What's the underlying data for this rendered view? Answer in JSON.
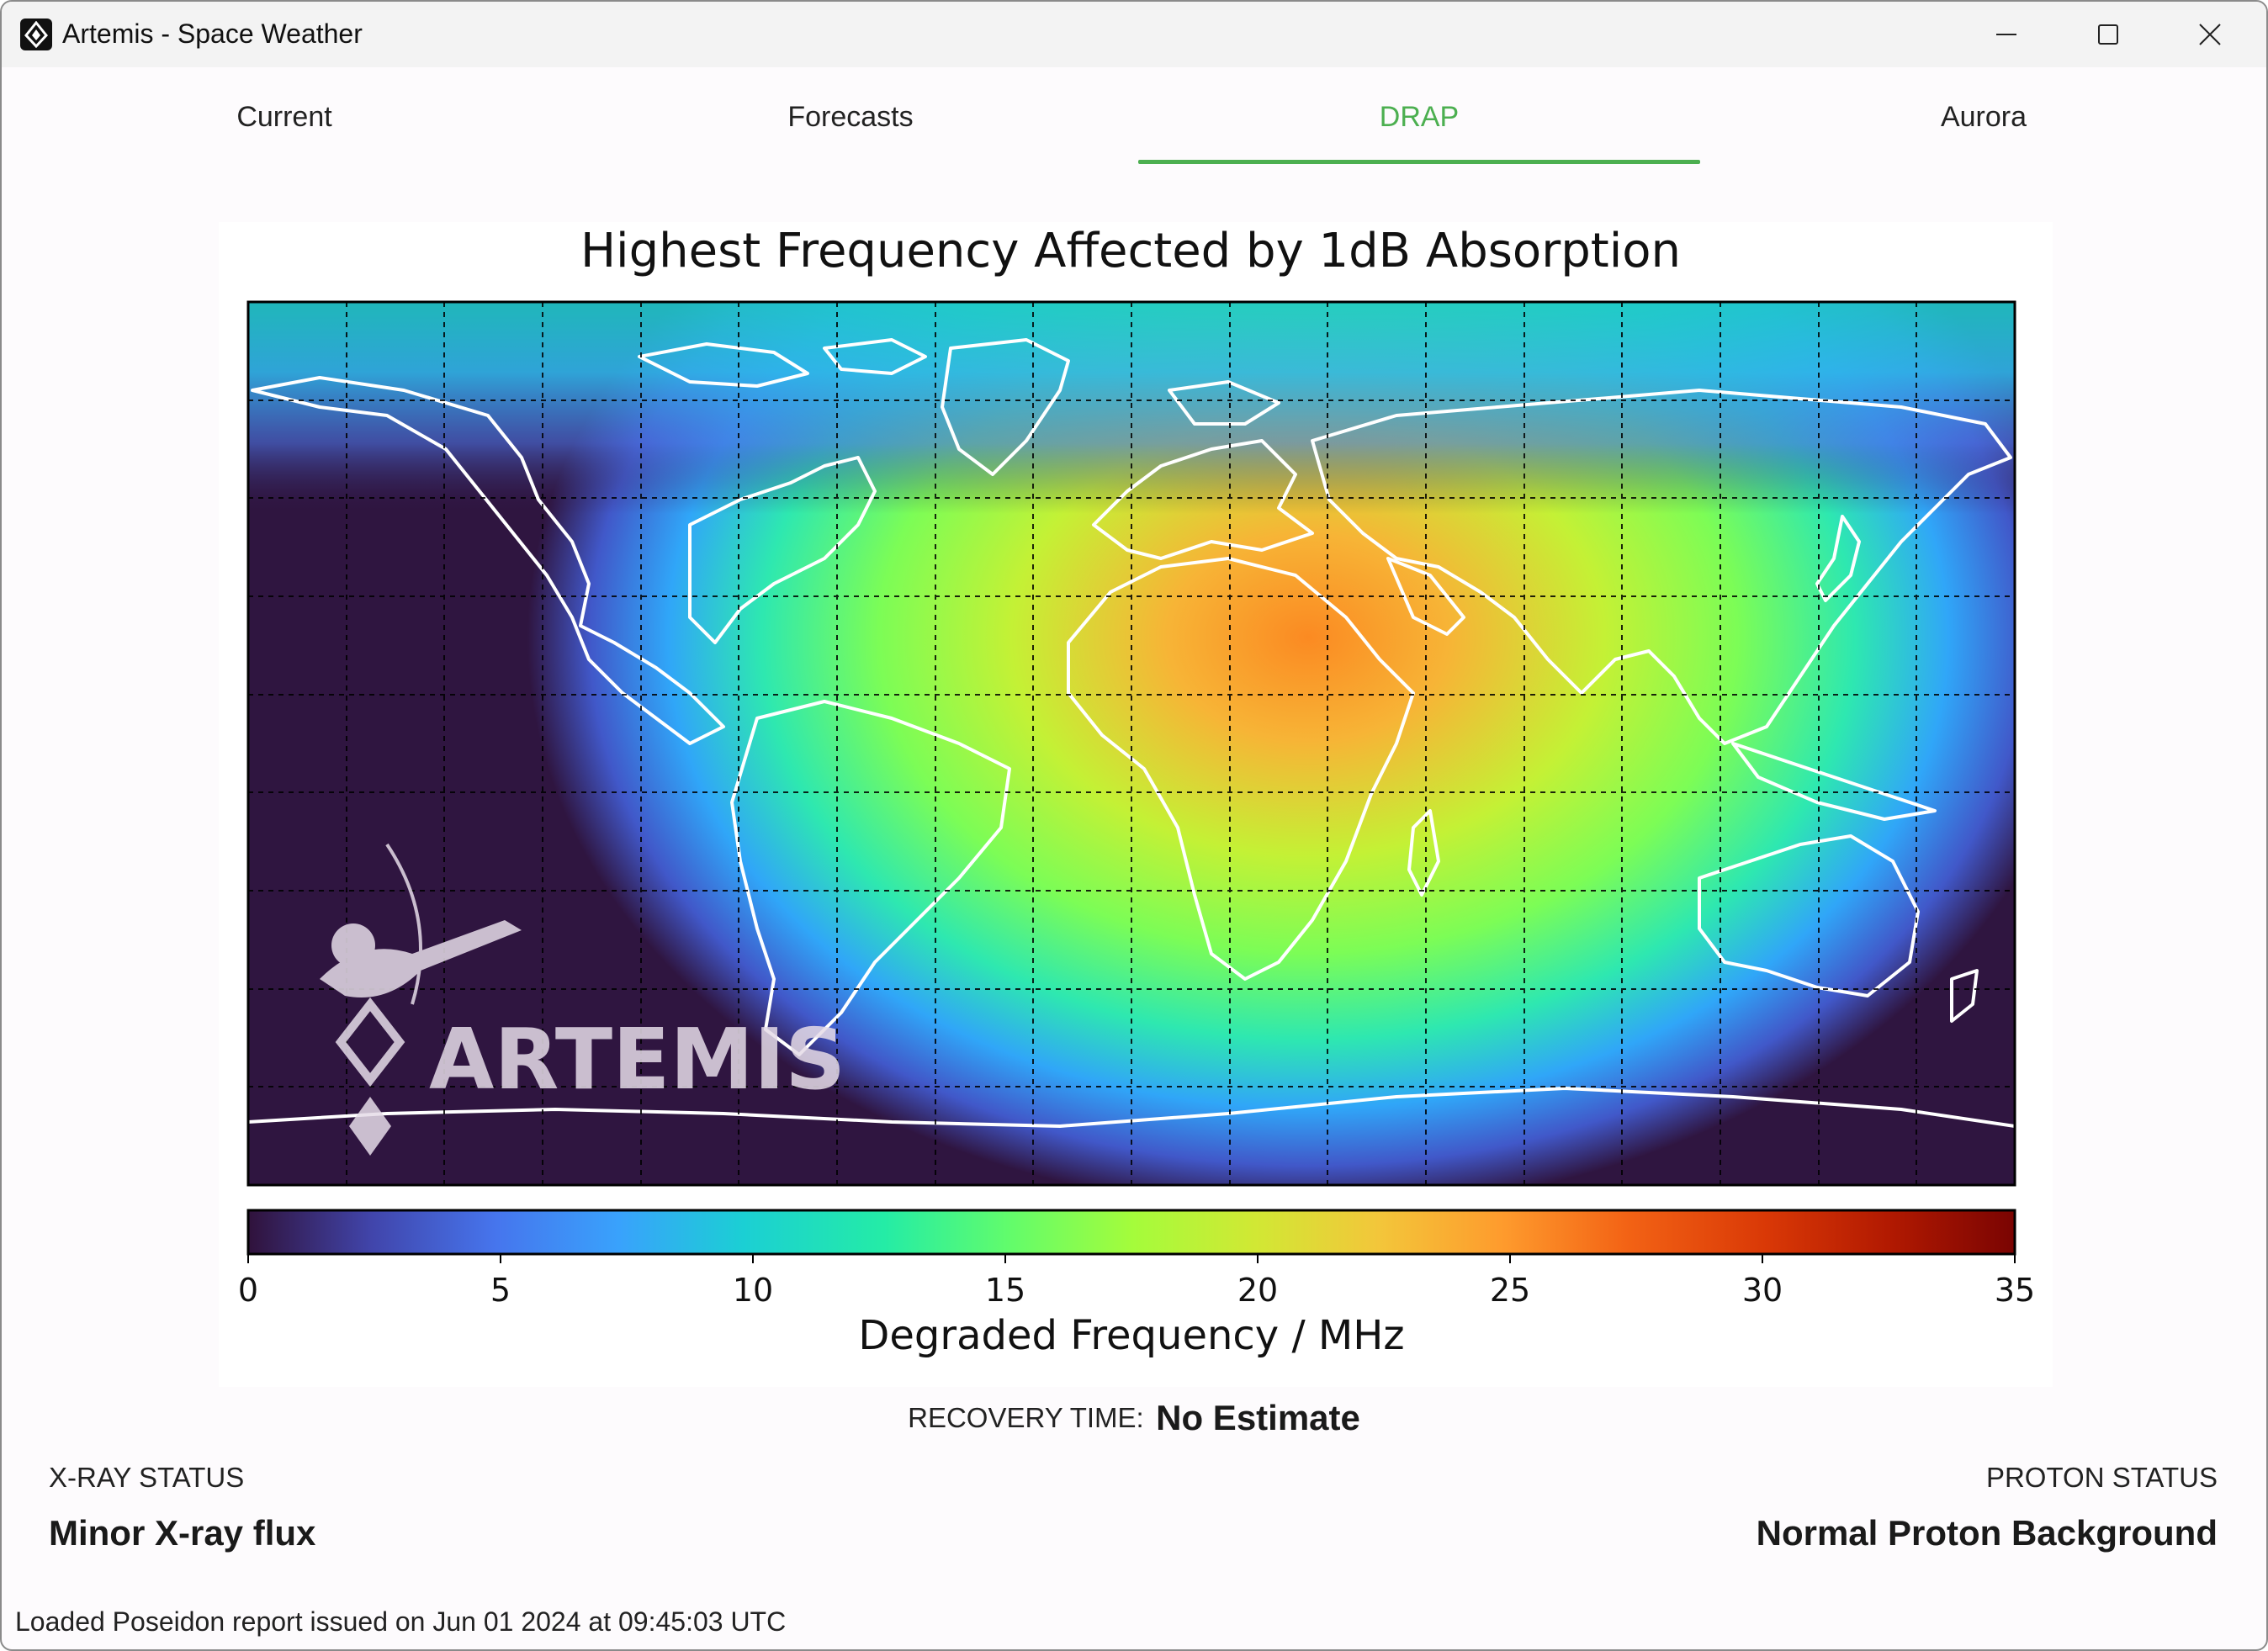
{
  "window": {
    "title": "Artemis - Space Weather"
  },
  "tabs": [
    {
      "label": "Current",
      "active": false
    },
    {
      "label": "Forecasts",
      "active": false
    },
    {
      "label": "DRAP",
      "active": true
    },
    {
      "label": "Aurora",
      "active": false
    }
  ],
  "accent_color": "#4caf50",
  "chart_data": {
    "type": "heatmap",
    "title": "Highest Frequency Affected by 1dB Absorption",
    "colorbar_label": "Degraded Frequency / MHz",
    "colorbar_ticks": [
      "0",
      "5",
      "10",
      "15",
      "20",
      "25",
      "30",
      "35"
    ],
    "colorbar_range": [
      0,
      35
    ],
    "colormap": "turbo",
    "background": "world map with coastlines",
    "grid": true,
    "peak_value_approx": 25,
    "watermark": "ARTEMIS"
  },
  "recovery": {
    "label": "RECOVERY TIME:",
    "value": "No Estimate"
  },
  "xray": {
    "label": "X-RAY STATUS",
    "value": "Minor X-ray flux"
  },
  "proton": {
    "label": "PROTON STATUS",
    "value": "Normal Proton Background"
  },
  "status_bar": {
    "text": "Loaded Poseidon report issued on Jun 01 2024 at 09:45:03 UTC"
  }
}
